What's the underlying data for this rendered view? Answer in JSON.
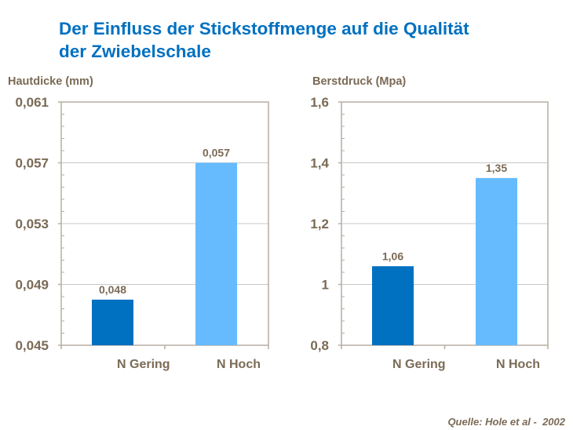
{
  "title_line1": "Der Einfluss der Stickstoffmenge auf die Qualität",
  "title_line2": "der Zwiebelschale",
  "source": "Quelle: Hole et al -  2002",
  "colors": {
    "title": "#0070C0",
    "text": "#7a6a55",
    "bar_low": "#0070C0",
    "bar_high": "#66BBFF",
    "axis": "#b7aea3",
    "grid": "#c8c8c8"
  },
  "chart_data": [
    {
      "type": "bar",
      "title": "",
      "ylabel": "Hautdicke (mm)",
      "xlabel": "",
      "categories": [
        "N Gering",
        "N Hoch"
      ],
      "values": [
        0.048,
        0.057
      ],
      "value_labels": [
        "0,048",
        "0,057"
      ],
      "ylim": [
        0.045,
        0.061
      ],
      "yticks": [
        0.045,
        0.049,
        0.053,
        0.057,
        0.061
      ],
      "ytick_labels": [
        "0,045",
        "0,049",
        "0,053",
        "0,057",
        "0,061"
      ],
      "grid": true,
      "legend": "none"
    },
    {
      "type": "bar",
      "title": "",
      "ylabel": "Berstdruck (Mpa)",
      "xlabel": "",
      "categories": [
        "N Gering",
        "N Hoch"
      ],
      "values": [
        1.06,
        1.35
      ],
      "value_labels": [
        "1,06",
        "1,35"
      ],
      "ylim": [
        0.8,
        1.6
      ],
      "yticks": [
        0.8,
        1.0,
        1.2,
        1.4,
        1.6
      ],
      "ytick_labels": [
        "0,8",
        "1",
        "1,2",
        "1,4",
        "1,6"
      ],
      "grid": true,
      "legend": "none"
    }
  ]
}
